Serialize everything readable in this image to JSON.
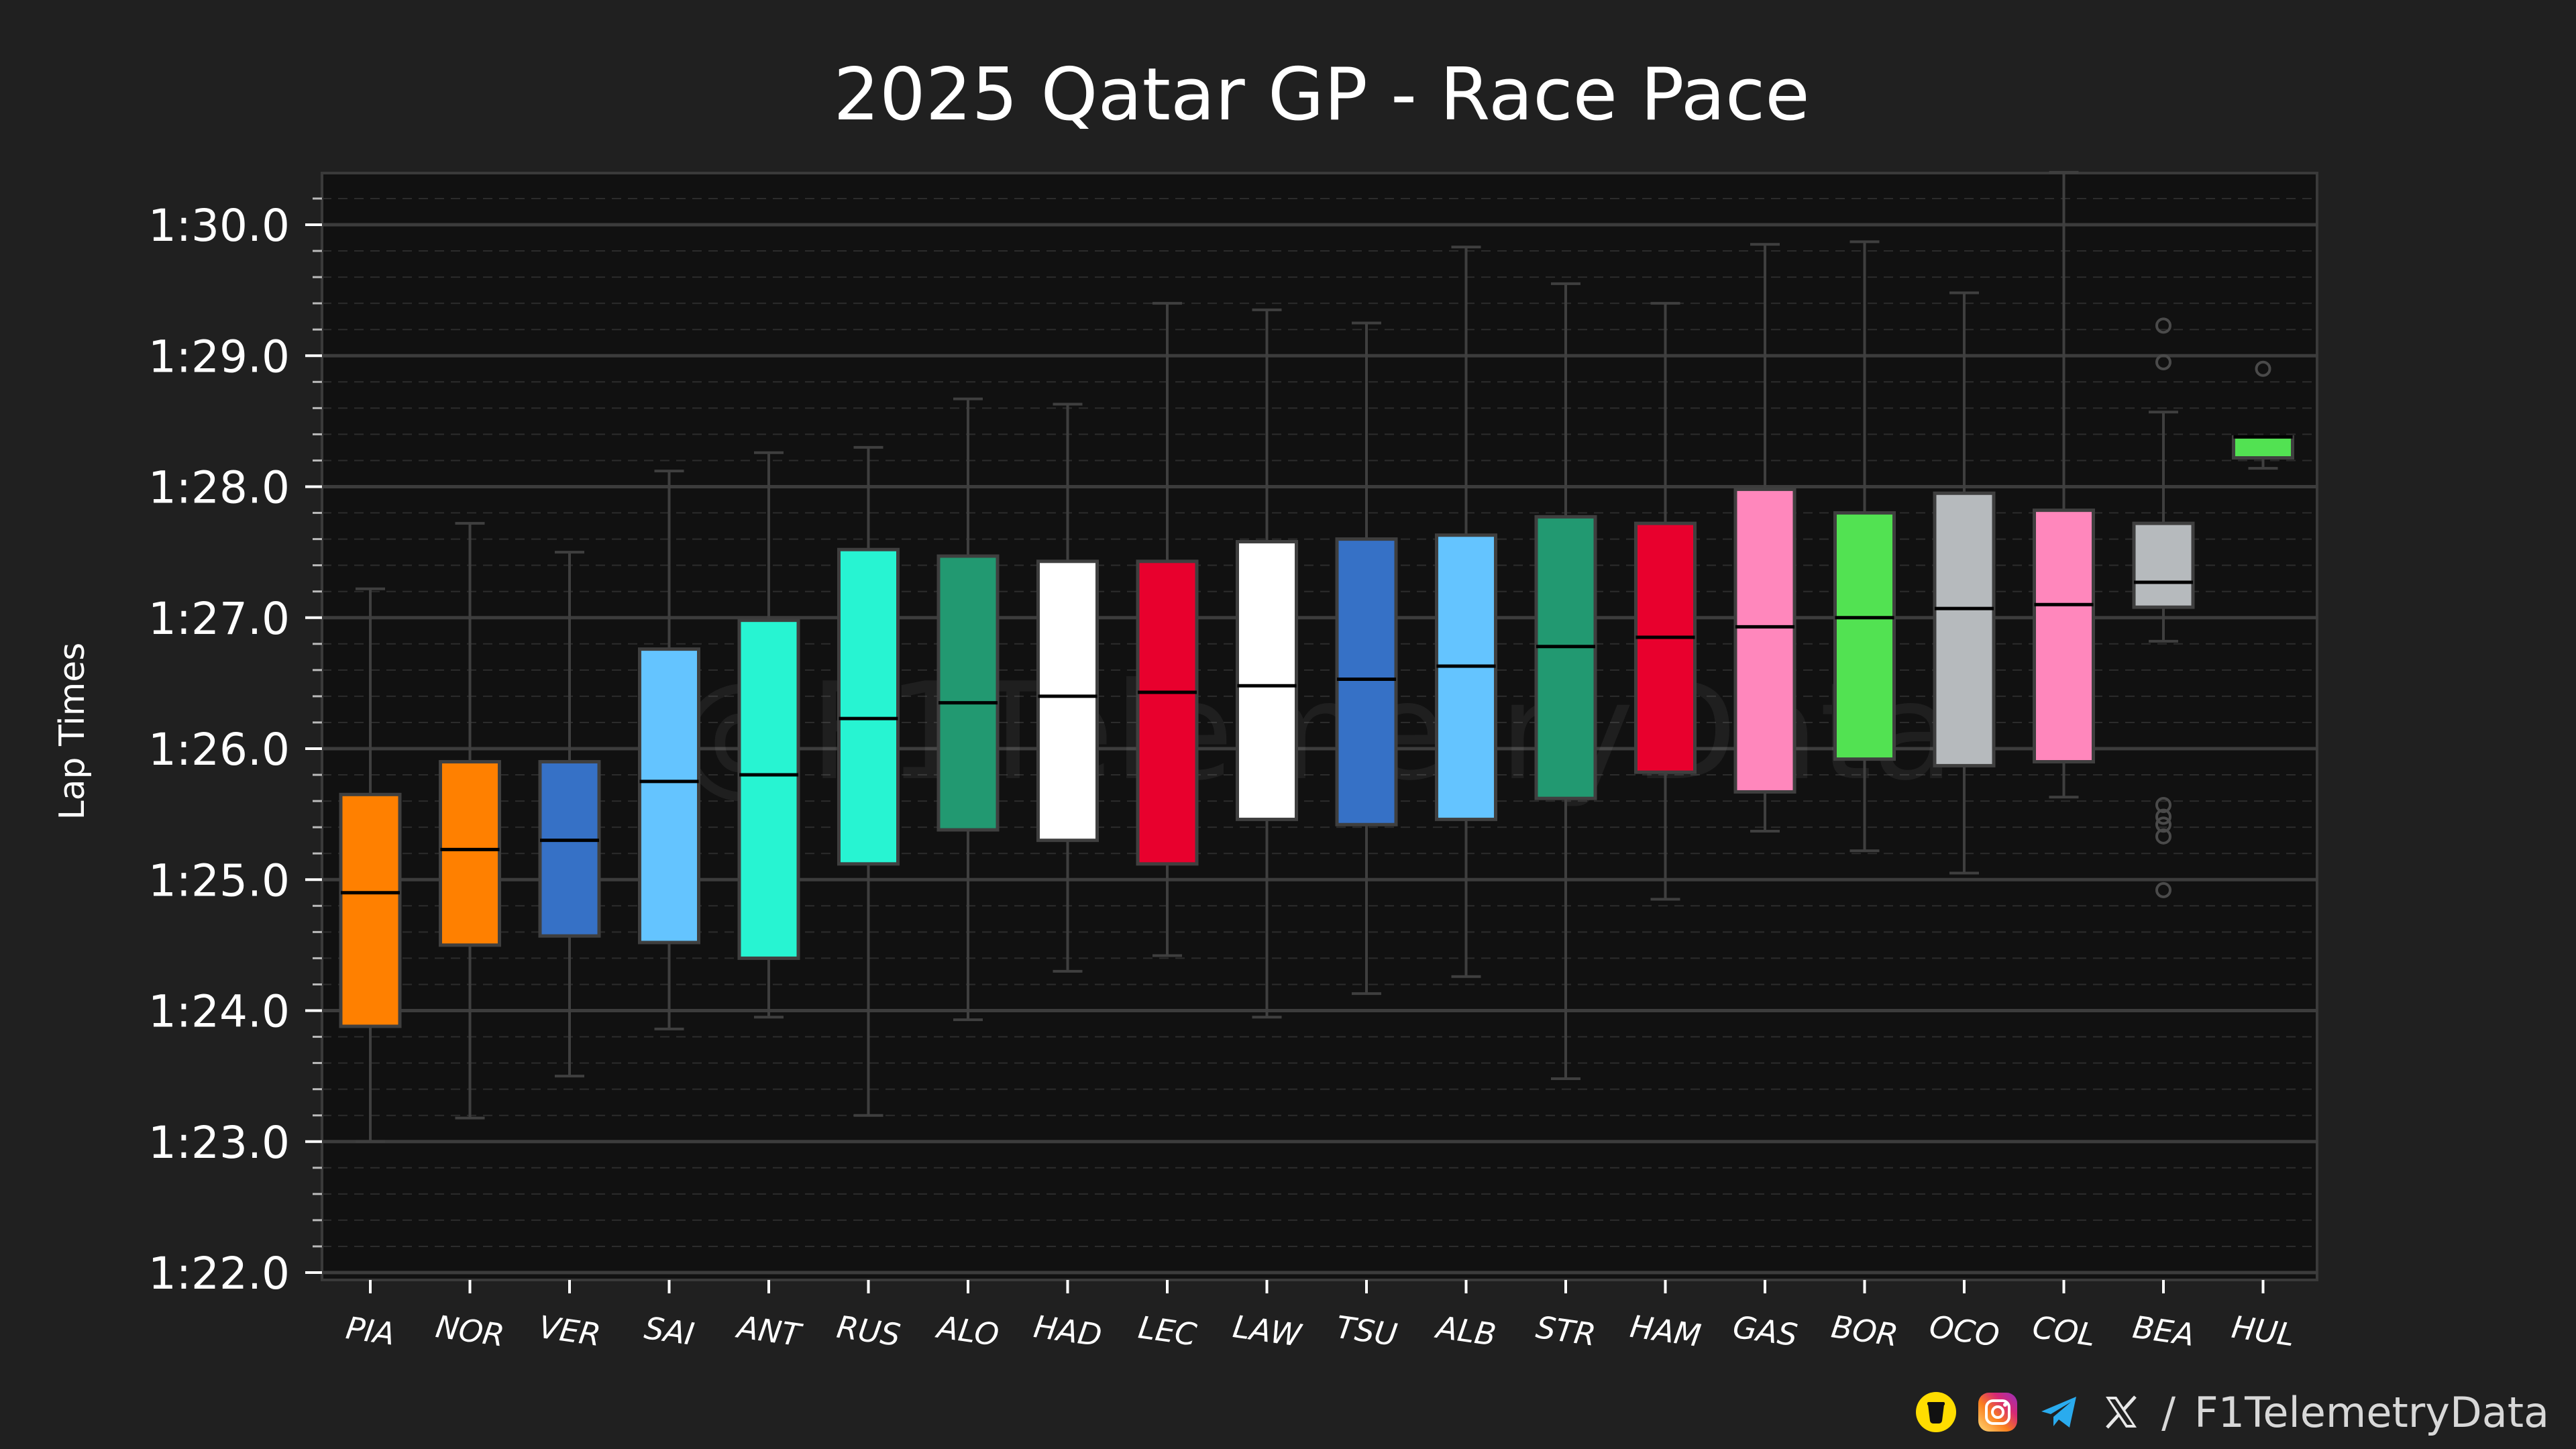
{
  "chart_data": {
    "type": "box",
    "title": "2025 Qatar GP - Race Pace",
    "ylabel": "Lap Times",
    "xlabel": "",
    "watermark": "@F1TelemetryData",
    "ylim_seconds": [
      81.6,
      90.4
    ],
    "yticks": [
      {
        "value": 82,
        "label": "1:22.0"
      },
      {
        "value": 83,
        "label": "1:23.0"
      },
      {
        "value": 84,
        "label": "1:24.0"
      },
      {
        "value": 85,
        "label": "1:25.0"
      },
      {
        "value": 86,
        "label": "1:26.0"
      },
      {
        "value": 87,
        "label": "1:27.0"
      },
      {
        "value": 88,
        "label": "1:28.0"
      },
      {
        "value": 89,
        "label": "1:29.0"
      },
      {
        "value": 90,
        "label": "1:30.0"
      }
    ],
    "drivers": [
      {
        "driver": "PIA",
        "color": "#FF8000",
        "min": 83.0,
        "q1": 83.88,
        "median": 84.9,
        "q3": 85.65,
        "max": 87.22,
        "outliers": []
      },
      {
        "driver": "NOR",
        "color": "#FF8000",
        "min": 83.18,
        "q1": 84.5,
        "median": 85.23,
        "q3": 85.9,
        "max": 87.72,
        "outliers": []
      },
      {
        "driver": "VER",
        "color": "#3671C6",
        "min": 83.5,
        "q1": 84.57,
        "median": 85.3,
        "q3": 85.9,
        "max": 87.5,
        "outliers": []
      },
      {
        "driver": "SAI",
        "color": "#64C4FF",
        "min": 83.86,
        "q1": 84.52,
        "median": 85.75,
        "q3": 86.76,
        "max": 88.12,
        "outliers": []
      },
      {
        "driver": "ANT",
        "color": "#27F4D2",
        "min": 83.95,
        "q1": 84.4,
        "median": 85.8,
        "q3": 86.98,
        "max": 88.26,
        "outliers": []
      },
      {
        "driver": "RUS",
        "color": "#27F4D2",
        "min": 83.2,
        "q1": 85.12,
        "median": 86.23,
        "q3": 87.52,
        "max": 88.3,
        "outliers": []
      },
      {
        "driver": "ALO",
        "color": "#229971",
        "min": 83.93,
        "q1": 85.38,
        "median": 86.35,
        "q3": 87.47,
        "max": 88.67,
        "outliers": []
      },
      {
        "driver": "HAD",
        "color": "#FFFFFF",
        "min": 84.3,
        "q1": 85.3,
        "median": 86.4,
        "q3": 87.43,
        "max": 88.63,
        "outliers": []
      },
      {
        "driver": "LEC",
        "color": "#E8002D",
        "min": 84.42,
        "q1": 85.12,
        "median": 86.43,
        "q3": 87.43,
        "max": 89.4,
        "outliers": []
      },
      {
        "driver": "LAW",
        "color": "#FFFFFF",
        "min": 83.95,
        "q1": 85.46,
        "median": 86.48,
        "q3": 87.58,
        "max": 89.35,
        "outliers": []
      },
      {
        "driver": "TSU",
        "color": "#3671C6",
        "min": 84.13,
        "q1": 85.42,
        "median": 86.53,
        "q3": 87.6,
        "max": 89.25,
        "outliers": []
      },
      {
        "driver": "ALB",
        "color": "#64C4FF",
        "min": 84.26,
        "q1": 85.46,
        "median": 86.63,
        "q3": 87.63,
        "max": 89.83,
        "outliers": []
      },
      {
        "driver": "STR",
        "color": "#229971",
        "min": 83.48,
        "q1": 85.62,
        "median": 86.78,
        "q3": 87.77,
        "max": 89.55,
        "outliers": []
      },
      {
        "driver": "HAM",
        "color": "#E8002D",
        "min": 84.85,
        "q1": 85.82,
        "median": 86.85,
        "q3": 87.72,
        "max": 89.4,
        "outliers": []
      },
      {
        "driver": "GAS",
        "color": "#FF87BC",
        "min": 85.37,
        "q1": 85.67,
        "median": 86.93,
        "q3": 87.98,
        "max": 89.85,
        "outliers": []
      },
      {
        "driver": "BOR",
        "color": "#52E252",
        "min": 85.22,
        "q1": 85.92,
        "median": 87.0,
        "q3": 87.8,
        "max": 89.87,
        "outliers": []
      },
      {
        "driver": "OCO",
        "color": "#B6BABD",
        "min": 85.05,
        "q1": 85.87,
        "median": 87.07,
        "q3": 87.95,
        "max": 89.48,
        "outliers": []
      },
      {
        "driver": "COL",
        "color": "#FF87BC",
        "min": 85.63,
        "q1": 85.9,
        "median": 87.1,
        "q3": 87.82,
        "max": 90.4,
        "outliers": []
      },
      {
        "driver": "BEA",
        "color": "#B6BABD",
        "min": 86.82,
        "q1": 87.08,
        "median": 87.27,
        "q3": 87.72,
        "max": 88.57,
        "outliers": [
          89.23,
          88.95,
          85.57,
          85.48,
          85.42,
          85.33,
          84.92
        ]
      },
      {
        "driver": "HUL",
        "color": "#52E252",
        "min": 88.14,
        "q1": 88.22,
        "median": 88.38,
        "q3": 88.38,
        "max": 88.38,
        "outliers": [
          88.9
        ]
      }
    ]
  },
  "footer": {
    "handle": "F1TelemetryData",
    "separator": "/",
    "icons": [
      "buymeacoffee-icon",
      "instagram-icon",
      "telegram-icon",
      "x-icon"
    ]
  }
}
